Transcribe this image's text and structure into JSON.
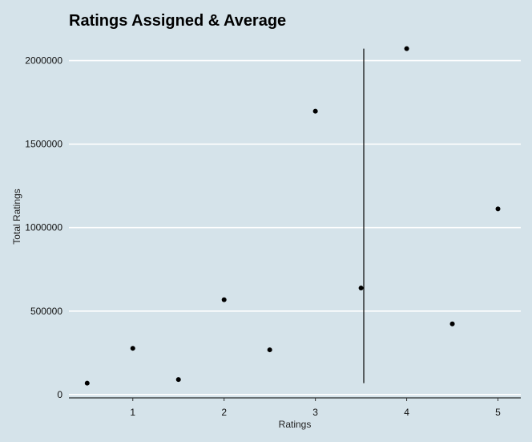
{
  "chart_data": {
    "type": "scatter",
    "title": "Ratings Assigned & Average",
    "xlabel": "Ratings",
    "ylabel": "Total Ratings",
    "xlim": [
      0.3,
      5.25
    ],
    "ylim": [
      -20000,
      2075000
    ],
    "x_ticks": [
      1,
      2,
      3,
      4,
      5
    ],
    "y_ticks": [
      0,
      500000,
      1000000,
      1500000,
      2000000
    ],
    "x_tick_labels": [
      "1",
      "2",
      "3",
      "4",
      "5"
    ],
    "y_tick_labels": [
      "0",
      "500000",
      "1000000",
      "1500000",
      "2000000"
    ],
    "grid": "horizontal",
    "points": [
      {
        "x": 0.5,
        "y": 68000
      },
      {
        "x": 1.0,
        "y": 277000
      },
      {
        "x": 1.5,
        "y": 90000
      },
      {
        "x": 2.0,
        "y": 568000
      },
      {
        "x": 2.5,
        "y": 268000
      },
      {
        "x": 3.0,
        "y": 1697000
      },
      {
        "x": 3.5,
        "y": 638000
      },
      {
        "x": 4.0,
        "y": 2072000
      },
      {
        "x": 4.5,
        "y": 423000
      },
      {
        "x": 5.0,
        "y": 1112000
      }
    ],
    "average_line": {
      "x": 3.53,
      "y_range": [
        68000,
        2072000
      ]
    },
    "colors": {
      "background": "#d5e3ea",
      "grid": "#ffffff",
      "points": "#000000",
      "line": "#000000"
    }
  }
}
